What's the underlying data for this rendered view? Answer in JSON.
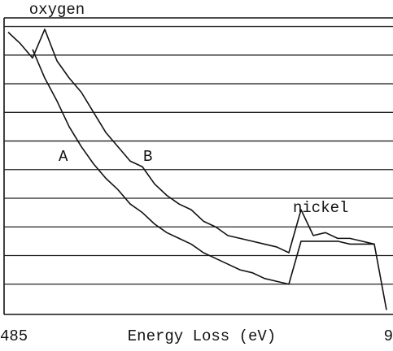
{
  "chart_data": {
    "type": "line",
    "x_label": "Energy Loss (eV)",
    "x_tick_labels": [
      "485",
      "9"
    ],
    "annotations": [
      "oxygen",
      "A",
      "B",
      "nickel"
    ],
    "ylim": [
      0,
      10.3
    ],
    "yticks": [
      1,
      2,
      3,
      4,
      5,
      6,
      7,
      8,
      9,
      10
    ],
    "grid": true,
    "series": [
      {
        "name": "A",
        "color": "#111111",
        "values": [
          null,
          null,
          9.2,
          8.2,
          7.4,
          6.5,
          5.8,
          5.2,
          4.7,
          4.3,
          3.8,
          3.5,
          3.1,
          2.8,
          2.6,
          2.4,
          2.1,
          1.9,
          1.7,
          1.5,
          1.4,
          1.2,
          1.1,
          1.0,
          2.5,
          2.5,
          2.5,
          2.5,
          2.4,
          2.4,
          2.4,
          null
        ]
      },
      {
        "name": "B",
        "color": "#111111",
        "values": [
          9.8,
          9.4,
          8.9,
          9.9,
          8.8,
          8.2,
          7.7,
          7.0,
          6.3,
          5.8,
          5.3,
          5.1,
          4.5,
          4.1,
          3.8,
          3.6,
          3.2,
          3.0,
          2.7,
          2.6,
          2.5,
          2.4,
          2.3,
          2.1,
          3.6,
          2.7,
          2.8,
          2.6,
          2.6,
          2.5,
          2.4,
          0.1
        ]
      }
    ]
  }
}
